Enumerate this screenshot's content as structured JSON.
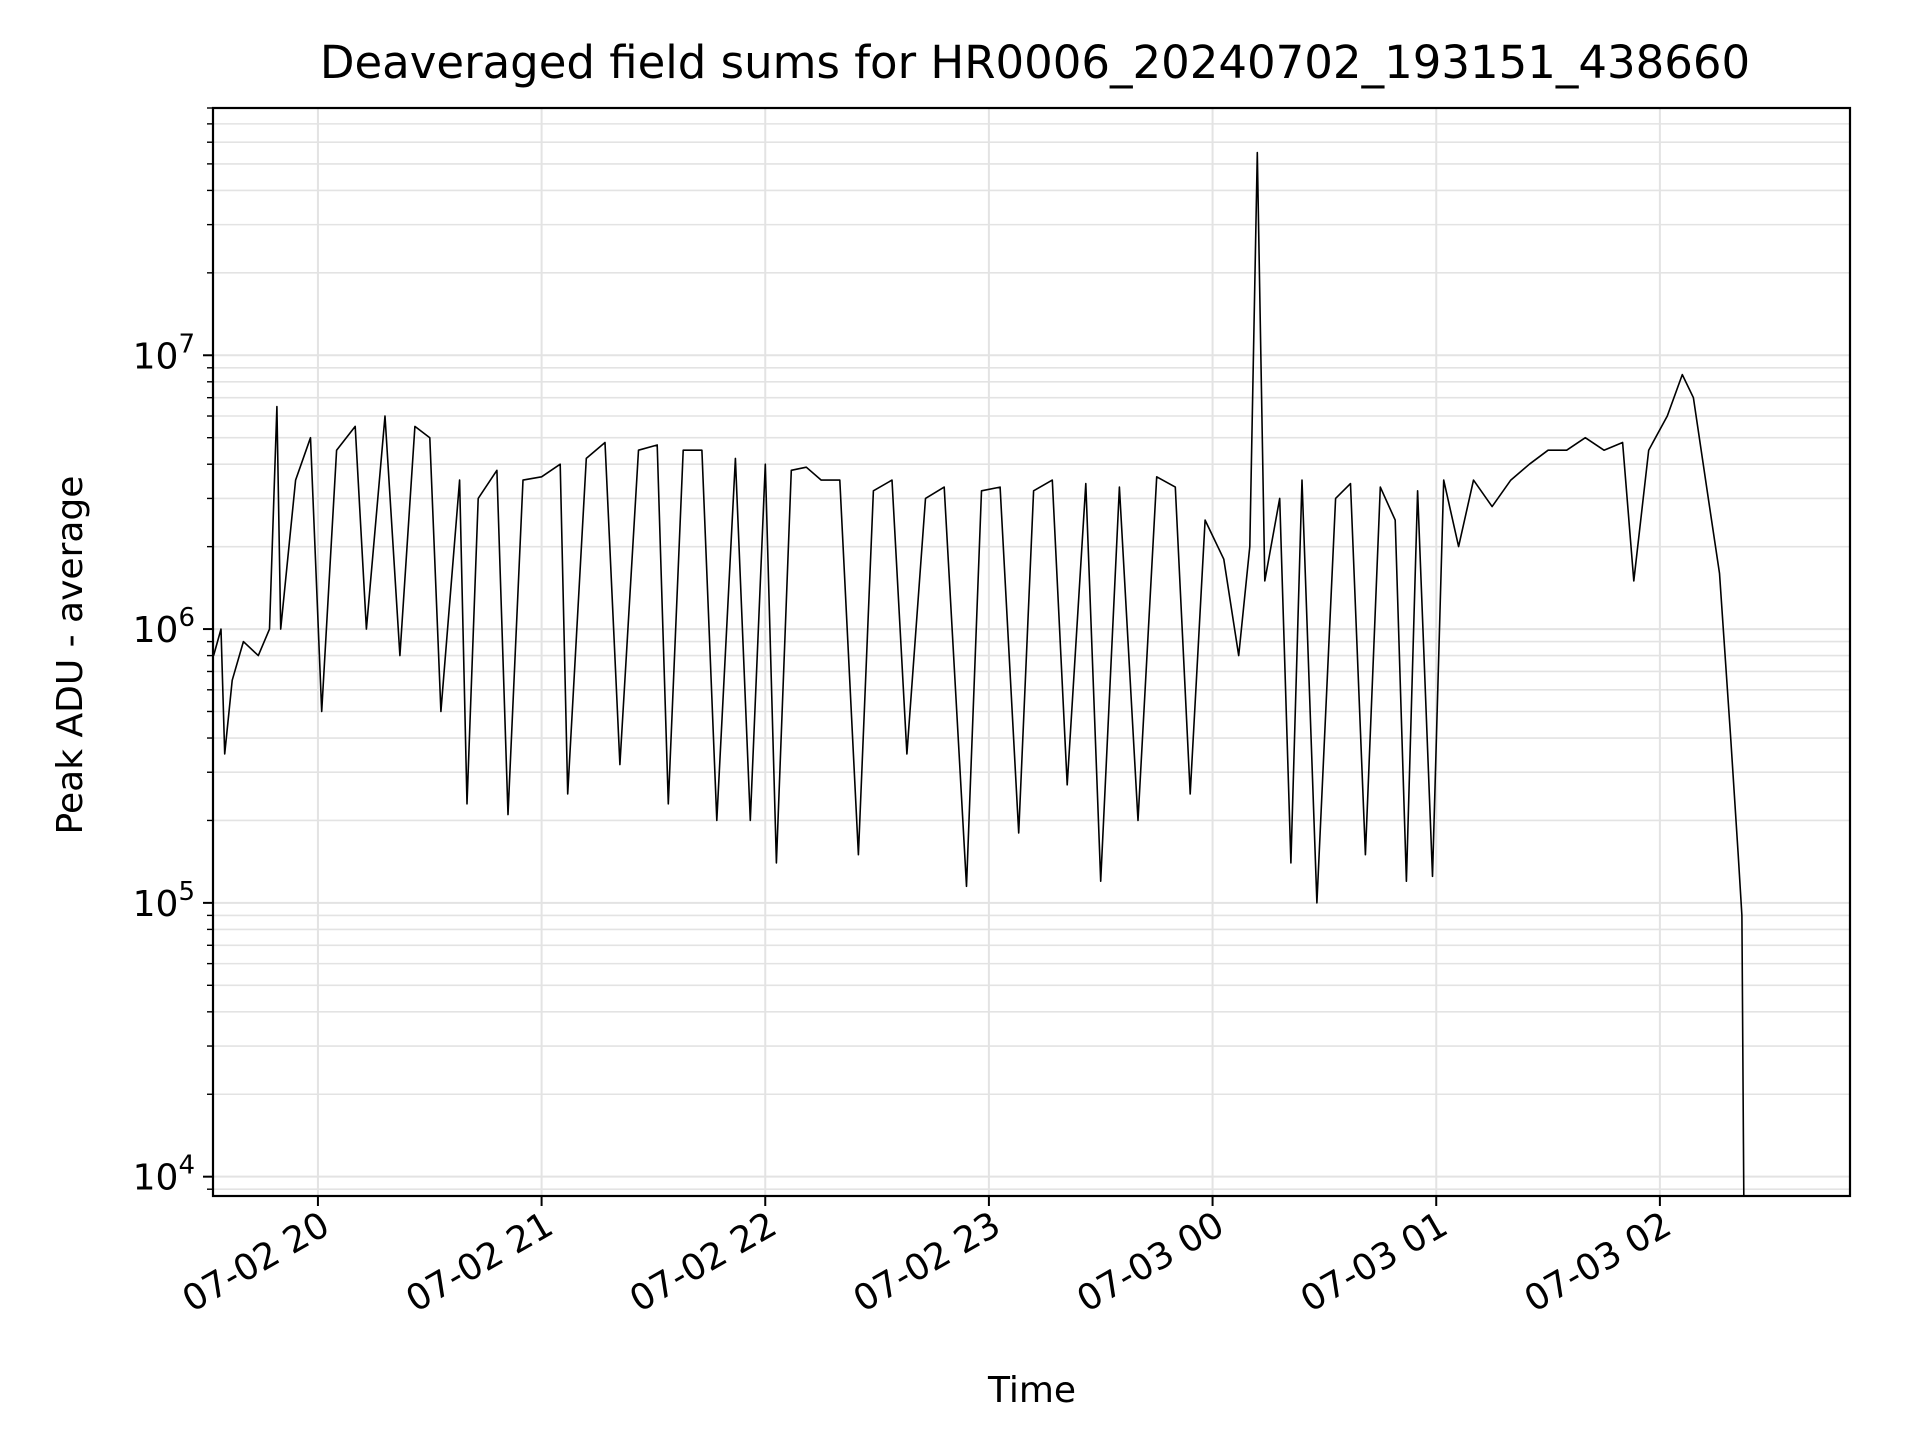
{
  "chart_data": {
    "type": "line",
    "title": "Deaveraged field sums for HR0006_20240702_193151_438660",
    "xlabel": "Time",
    "ylabel": "Peak ADU - average",
    "yscale": "log",
    "ylim": [
      8500,
      80000000
    ],
    "xlim": [
      "2024-07-02T19:31:51",
      "2024-07-03T02:51:00"
    ],
    "grid": true,
    "x_ticks": [
      "07-02 20",
      "07-02 21",
      "07-02 22",
      "07-02 23",
      "07-03 00",
      "07-03 01",
      "07-03 02"
    ],
    "y_ticks": [
      {
        "base": "10",
        "exp": "4",
        "value": 10000
      },
      {
        "base": "10",
        "exp": "5",
        "value": 100000
      },
      {
        "base": "10",
        "exp": "6",
        "value": 1000000
      },
      {
        "base": "10",
        "exp": "7",
        "value": 10000000
      }
    ],
    "series": [
      {
        "color": "#000000",
        "points": [
          [
            "2024-07-02T19:32:00",
            800000
          ],
          [
            "2024-07-02T19:34:00",
            1000000
          ],
          [
            "2024-07-02T19:35:00",
            350000
          ],
          [
            "2024-07-02T19:37:00",
            650000
          ],
          [
            "2024-07-02T19:40:00",
            900000
          ],
          [
            "2024-07-02T19:44:00",
            800000
          ],
          [
            "2024-07-02T19:47:00",
            1000000
          ],
          [
            "2024-07-02T19:49:00",
            6500000
          ],
          [
            "2024-07-02T19:50:00",
            1000000
          ],
          [
            "2024-07-02T19:54:00",
            3500000
          ],
          [
            "2024-07-02T19:58:00",
            5000000
          ],
          [
            "2024-07-02T20:01:00",
            500000
          ],
          [
            "2024-07-02T20:05:00",
            4500000
          ],
          [
            "2024-07-02T20:10:00",
            5500000
          ],
          [
            "2024-07-02T20:13:00",
            1000000
          ],
          [
            "2024-07-02T20:18:00",
            6000000
          ],
          [
            "2024-07-02T20:22:00",
            800000
          ],
          [
            "2024-07-02T20:26:00",
            5500000
          ],
          [
            "2024-07-02T20:30:00",
            5000000
          ],
          [
            "2024-07-02T20:33:00",
            500000
          ],
          [
            "2024-07-02T20:38:00",
            3500000
          ],
          [
            "2024-07-02T20:40:00",
            230000
          ],
          [
            "2024-07-02T20:43:00",
            3000000
          ],
          [
            "2024-07-02T20:48:00",
            3800000
          ],
          [
            "2024-07-02T20:51:00",
            210000
          ],
          [
            "2024-07-02T20:55:00",
            3500000
          ],
          [
            "2024-07-02T21:00:00",
            3600000
          ],
          [
            "2024-07-02T21:05:00",
            4000000
          ],
          [
            "2024-07-02T21:07:00",
            250000
          ],
          [
            "2024-07-02T21:12:00",
            4200000
          ],
          [
            "2024-07-02T21:17:00",
            4800000
          ],
          [
            "2024-07-02T21:21:00",
            320000
          ],
          [
            "2024-07-02T21:26:00",
            4500000
          ],
          [
            "2024-07-02T21:31:00",
            4700000
          ],
          [
            "2024-07-02T21:34:00",
            230000
          ],
          [
            "2024-07-02T21:38:00",
            4500000
          ],
          [
            "2024-07-02T21:43:00",
            4500000
          ],
          [
            "2024-07-02T21:47:00",
            200000
          ],
          [
            "2024-07-02T21:52:00",
            4200000
          ],
          [
            "2024-07-02T21:56:00",
            200000
          ],
          [
            "2024-07-02T22:00:00",
            4000000
          ],
          [
            "2024-07-02T22:03:00",
            140000
          ],
          [
            "2024-07-02T22:07:00",
            3800000
          ],
          [
            "2024-07-02T22:11:00",
            3900000
          ],
          [
            "2024-07-02T22:15:00",
            3500000
          ],
          [
            "2024-07-02T22:20:00",
            3500000
          ],
          [
            "2024-07-02T22:25:00",
            150000
          ],
          [
            "2024-07-02T22:29:00",
            3200000
          ],
          [
            "2024-07-02T22:34:00",
            3500000
          ],
          [
            "2024-07-02T22:38:00",
            350000
          ],
          [
            "2024-07-02T22:43:00",
            3000000
          ],
          [
            "2024-07-02T22:48:00",
            3300000
          ],
          [
            "2024-07-02T22:54:00",
            115000
          ],
          [
            "2024-07-02T22:58:00",
            3200000
          ],
          [
            "2024-07-02T23:03:00",
            3300000
          ],
          [
            "2024-07-02T23:08:00",
            180000
          ],
          [
            "2024-07-02T23:12:00",
            3200000
          ],
          [
            "2024-07-02T23:17:00",
            3500000
          ],
          [
            "2024-07-02T23:21:00",
            270000
          ],
          [
            "2024-07-02T23:26:00",
            3400000
          ],
          [
            "2024-07-02T23:30:00",
            120000
          ],
          [
            "2024-07-02T23:35:00",
            3300000
          ],
          [
            "2024-07-02T23:40:00",
            200000
          ],
          [
            "2024-07-02T23:45:00",
            3600000
          ],
          [
            "2024-07-02T23:50:00",
            3300000
          ],
          [
            "2024-07-02T23:54:00",
            250000
          ],
          [
            "2024-07-02T23:58:00",
            2500000
          ],
          [
            "2024-07-03T00:03:00",
            1800000
          ],
          [
            "2024-07-03T00:07:00",
            800000
          ],
          [
            "2024-07-03T00:10:00",
            2000000
          ],
          [
            "2024-07-03T00:12:00",
            55000000
          ],
          [
            "2024-07-03T00:14:00",
            1500000
          ],
          [
            "2024-07-03T00:18:00",
            3000000
          ],
          [
            "2024-07-03T00:21:00",
            140000
          ],
          [
            "2024-07-03T00:24:00",
            3500000
          ],
          [
            "2024-07-03T00:28:00",
            100000
          ],
          [
            "2024-07-03T00:33:00",
            3000000
          ],
          [
            "2024-07-03T00:37:00",
            3400000
          ],
          [
            "2024-07-03T00:41:00",
            150000
          ],
          [
            "2024-07-03T00:45:00",
            3300000
          ],
          [
            "2024-07-03T00:49:00",
            2500000
          ],
          [
            "2024-07-03T00:52:00",
            120000
          ],
          [
            "2024-07-03T00:55:00",
            3200000
          ],
          [
            "2024-07-03T00:59:00",
            125000
          ],
          [
            "2024-07-03T01:02:00",
            3500000
          ],
          [
            "2024-07-03T01:06:00",
            2000000
          ],
          [
            "2024-07-03T01:10:00",
            3500000
          ],
          [
            "2024-07-03T01:15:00",
            2800000
          ],
          [
            "2024-07-03T01:20:00",
            3500000
          ],
          [
            "2024-07-03T01:25:00",
            4000000
          ],
          [
            "2024-07-03T01:30:00",
            4500000
          ],
          [
            "2024-07-03T01:35:00",
            4500000
          ],
          [
            "2024-07-03T01:40:00",
            5000000
          ],
          [
            "2024-07-03T01:45:00",
            4500000
          ],
          [
            "2024-07-03T01:50:00",
            4800000
          ],
          [
            "2024-07-03T01:53:00",
            1500000
          ],
          [
            "2024-07-03T01:57:00",
            4500000
          ],
          [
            "2024-07-03T02:02:00",
            6000000
          ],
          [
            "2024-07-03T02:06:00",
            8500000
          ],
          [
            "2024-07-03T02:09:00",
            7000000
          ],
          [
            "2024-07-03T02:13:00",
            3000000
          ],
          [
            "2024-07-03T02:16:00",
            1600000
          ],
          [
            "2024-07-03T02:19:00",
            400000
          ],
          [
            "2024-07-03T02:21:00",
            150000
          ],
          [
            "2024-07-03T02:22:00",
            90000
          ],
          [
            "2024-07-03T02:22:30",
            8500
          ]
        ]
      }
    ]
  }
}
